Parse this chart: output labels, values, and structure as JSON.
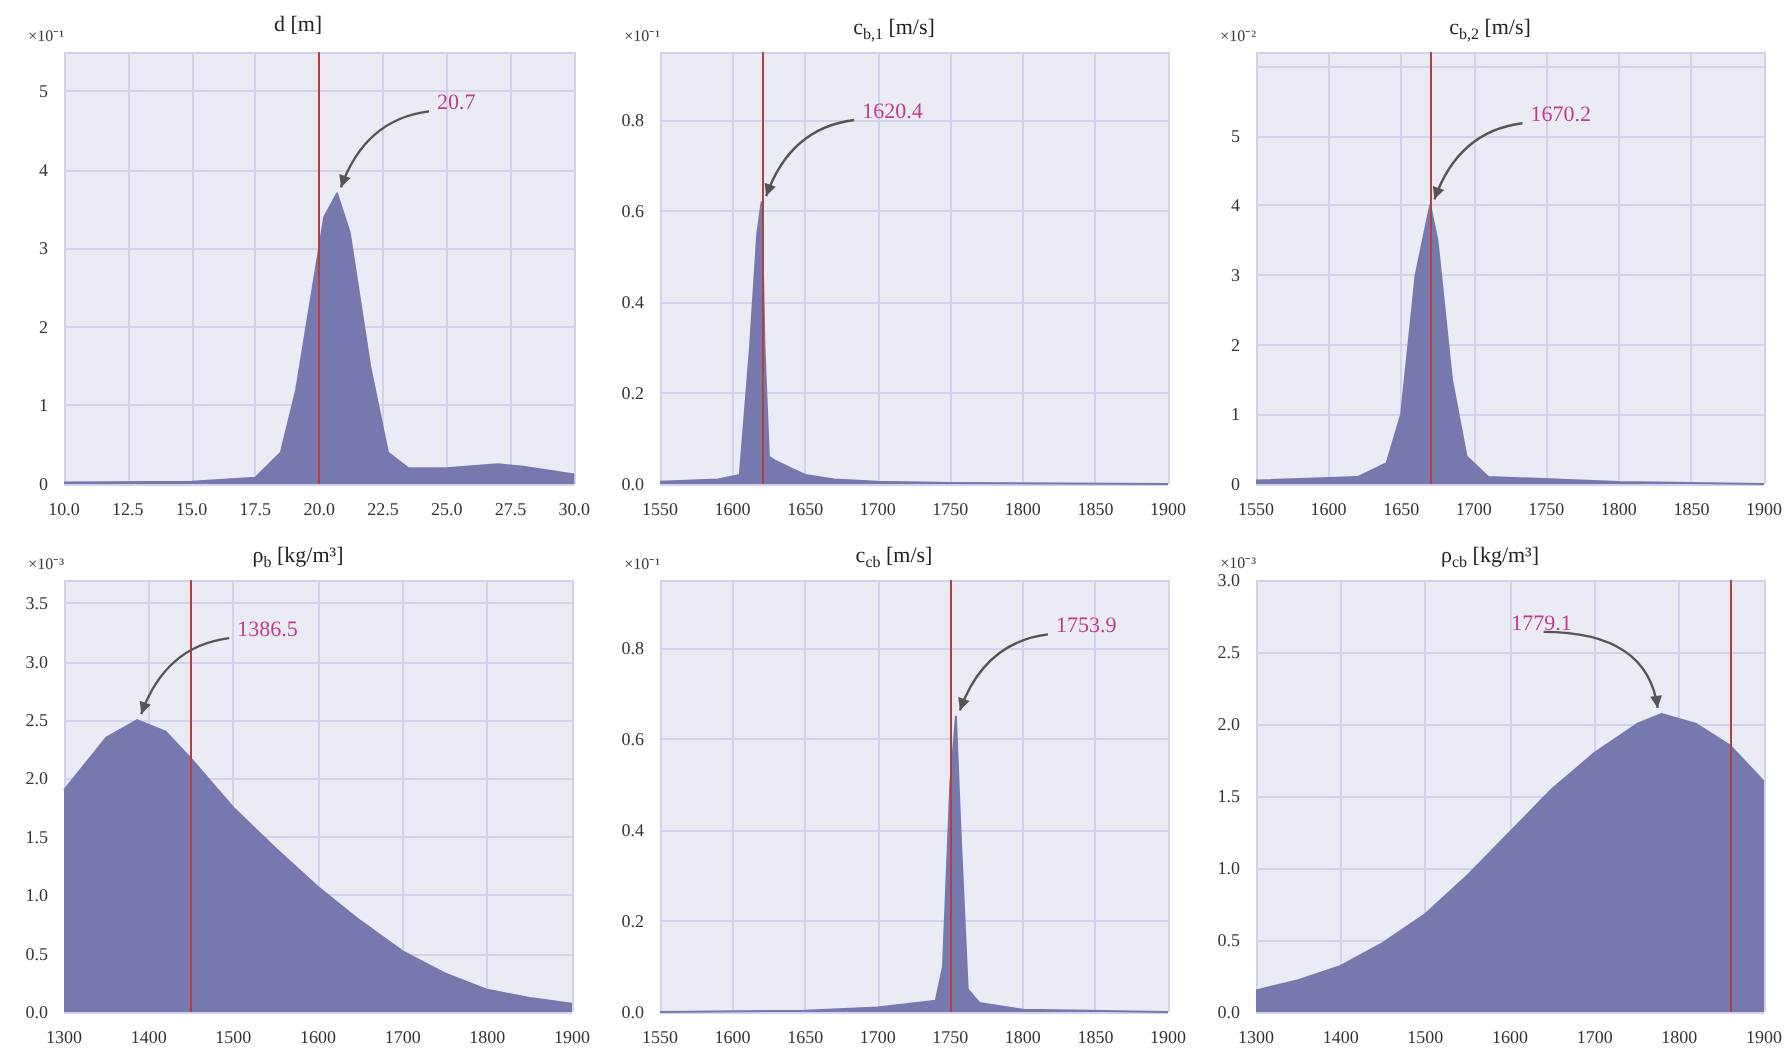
{
  "chart_data": [
    {
      "type": "area",
      "title": "d [m]",
      "ylabel": "×10⁻¹",
      "color": "#7778ad",
      "grid": true,
      "x": [
        10,
        15,
        17.5,
        18.5,
        19.1,
        19.5,
        20.2,
        20.7,
        21.2,
        22,
        22.7,
        23.5,
        25,
        27,
        28,
        30
      ],
      "values": [
        0.02,
        0.03,
        0.08,
        0.4,
        1.2,
        2.0,
        3.4,
        3.7,
        3.2,
        1.5,
        0.4,
        0.2,
        0.2,
        0.25,
        0.22,
        0.12
      ],
      "xlim": [
        10,
        30
      ],
      "xticks": [
        {
          "value": 10,
          "label": "10.0"
        },
        {
          "value": 12.5,
          "label": "12.5"
        },
        {
          "value": 15,
          "label": "15.0"
        },
        {
          "value": 17.5,
          "label": "17.5"
        },
        {
          "value": 20,
          "label": "20.0"
        },
        {
          "value": 22.5,
          "label": "22.5"
        },
        {
          "value": 25,
          "label": "25.0"
        },
        {
          "value": 27.5,
          "label": "27.5"
        },
        {
          "value": 30,
          "label": "30.0"
        }
      ],
      "ylim": [
        0,
        5.5
      ],
      "yticks": [
        0,
        1,
        2,
        3,
        4,
        5
      ],
      "ref_lines": [
        {
          "axis": "x",
          "value": 20,
          "color": "#b0413e"
        }
      ],
      "annotations": [
        {
          "text": "20.7",
          "x": 20.7,
          "y": 3.7
        }
      ]
    },
    {
      "type": "area",
      "title": "c$_{b,1}$ [m/s]",
      "ylabel": "×10⁻¹",
      "color": "#7778ad",
      "grid": true,
      "x": [
        1550,
        1590,
        1605,
        1612,
        1617,
        1620,
        1622,
        1625,
        1630,
        1640,
        1650,
        1670,
        1700,
        1750,
        1900
      ],
      "values": [
        0.005,
        0.01,
        0.02,
        0.3,
        0.55,
        0.62,
        0.3,
        0.06,
        0.05,
        0.035,
        0.02,
        0.01,
        0.005,
        0.002,
        0
      ],
      "xlim": [
        1550,
        1900
      ],
      "xticks": [
        1550,
        1600,
        1650,
        1700,
        1750,
        1800,
        1850,
        1900
      ],
      "ylim": [
        0,
        0.95
      ],
      "yticks": [
        {
          "value": 0,
          "label": "0.0"
        },
        {
          "value": 0.2,
          "label": "0.2"
        },
        {
          "value": 0.4,
          "label": "0.4"
        },
        {
          "value": 0.6,
          "label": "0.6"
        },
        {
          "value": 0.8,
          "label": "0.8"
        }
      ],
      "ref_lines": [
        {
          "axis": "x",
          "value": 1620,
          "color": "#b0413e"
        }
      ],
      "annotations": [
        {
          "text": "1620.4",
          "x": 1620.4,
          "y": 0.62
        }
      ]
    },
    {
      "type": "area",
      "title": "c$_{b,2}$ [m/s]",
      "ylabel": "×10⁻²",
      "color": "#7778ad",
      "grid": true,
      "x": [
        1550,
        1620,
        1640,
        1650,
        1660,
        1670,
        1675,
        1685,
        1695,
        1710,
        1800,
        1900
      ],
      "values": [
        0.05,
        0.1,
        0.3,
        1,
        3,
        4.0,
        3.5,
        1.5,
        0.4,
        0.1,
        0.03,
        0
      ],
      "xlim": [
        1550,
        1900
      ],
      "xticks": [
        1550,
        1600,
        1650,
        1700,
        1750,
        1800,
        1850,
        1900
      ],
      "ylim": [
        0,
        6.2
      ],
      "yticks": [
        0,
        1,
        2,
        3,
        4,
        5
      ],
      "ref_lines": [
        {
          "axis": "x",
          "value": 1670,
          "color": "#b0413e"
        }
      ],
      "annotations": [
        {
          "text": "1670.2",
          "x": 1670.2,
          "y": 4.0
        }
      ]
    },
    {
      "type": "area",
      "title": "ρ$_{b}$ [kg/m³]",
      "ylabel": "×10⁻³",
      "color": "#7778ad",
      "grid": true,
      "x": [
        1300,
        1350,
        1386.5,
        1420,
        1450,
        1500,
        1550,
        1600,
        1650,
        1700,
        1750,
        1800,
        1850,
        1900
      ],
      "values": [
        1.9,
        2.35,
        2.5,
        2.4,
        2.17,
        1.75,
        1.4,
        1.07,
        0.78,
        0.52,
        0.33,
        0.19,
        0.12,
        0.07
      ],
      "xlim": [
        1300,
        1900
      ],
      "xticks": [
        1300,
        1400,
        1500,
        1600,
        1700,
        1800,
        1900
      ],
      "ylim": [
        0,
        3.7
      ],
      "yticks": [
        {
          "value": 0,
          "label": "0.0"
        },
        {
          "value": 0.5,
          "label": "0.5"
        },
        {
          "value": 1,
          "label": "1.0"
        },
        {
          "value": 1.5,
          "label": "1.5"
        },
        {
          "value": 2,
          "label": "2.0"
        },
        {
          "value": 2.5,
          "label": "2.5"
        },
        {
          "value": 3,
          "label": "3.0"
        },
        {
          "value": 3.5,
          "label": "3.5"
        }
      ],
      "ref_lines": [
        {
          "axis": "x",
          "value": 1450,
          "color": "#b0413e"
        }
      ],
      "annotations": [
        {
          "text": "1386.5",
          "x": 1386.5,
          "y": 2.5
        }
      ]
    },
    {
      "type": "area",
      "title": "c$_{cb}$ [m/s]",
      "ylabel": "×10⁻¹",
      "color": "#7778ad",
      "grid": true,
      "x": [
        1550,
        1650,
        1700,
        1740,
        1745,
        1750,
        1753.9,
        1757,
        1762,
        1770,
        1800,
        1900
      ],
      "values": [
        0,
        0.003,
        0.01,
        0.025,
        0.1,
        0.5,
        0.65,
        0.4,
        0.05,
        0.02,
        0.005,
        0
      ],
      "xlim": [
        1550,
        1900
      ],
      "xticks": [
        1550,
        1600,
        1650,
        1700,
        1750,
        1800,
        1850,
        1900
      ],
      "ylim": [
        0,
        0.95
      ],
      "yticks": [
        {
          "value": 0,
          "label": "0.0"
        },
        {
          "value": 0.2,
          "label": "0.2"
        },
        {
          "value": 0.4,
          "label": "0.4"
        },
        {
          "value": 0.6,
          "label": "0.6"
        },
        {
          "value": 0.8,
          "label": "0.8"
        }
      ],
      "ref_lines": [
        {
          "axis": "x",
          "value": 1750,
          "color": "#b0413e"
        }
      ],
      "annotations": [
        {
          "text": "1753.9",
          "x": 1753.9,
          "y": 0.65
        }
      ]
    },
    {
      "type": "area",
      "title": "ρ$_{cb}$ [kg/m³]",
      "ylabel": "×10⁻³",
      "color": "#7778ad",
      "grid": true,
      "x": [
        1300,
        1350,
        1400,
        1450,
        1500,
        1550,
        1600,
        1650,
        1700,
        1750,
        1779.1,
        1820,
        1860,
        1900
      ],
      "values": [
        0.15,
        0.22,
        0.32,
        0.48,
        0.68,
        0.95,
        1.25,
        1.55,
        1.8,
        2.0,
        2.07,
        2.0,
        1.85,
        1.6
      ],
      "xlim": [
        1300,
        1900
      ],
      "xticks": [
        1300,
        1400,
        1500,
        1600,
        1700,
        1800,
        1900
      ],
      "ylim": [
        0,
        3.0
      ],
      "yticks": [
        {
          "value": 0,
          "label": "0.0"
        },
        {
          "value": 0.5,
          "label": "0.5"
        },
        {
          "value": 1,
          "label": "1.0"
        },
        {
          "value": 1.5,
          "label": "1.5"
        },
        {
          "value": 2,
          "label": "2.0"
        },
        {
          "value": 2.5,
          "label": "2.5"
        },
        {
          "value": 3,
          "label": "3.0"
        }
      ],
      "ref_lines": [
        {
          "axis": "x",
          "value": 1860,
          "color": "#b0413e"
        }
      ],
      "annotations": [
        {
          "text": "1779.1",
          "x": 1779.1,
          "y": 2.07
        }
      ]
    }
  ]
}
